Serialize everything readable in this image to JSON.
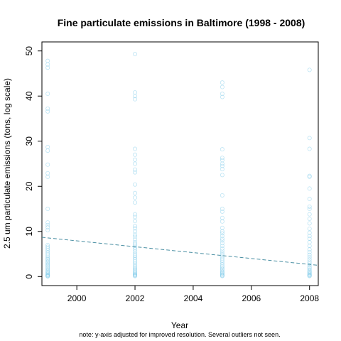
{
  "chart_data": {
    "type": "scatter",
    "title": "Fine particulate emissions in Baltimore (1998 - 2008)",
    "xlabel": "Year",
    "ylabel": "2.5 um particulate emissions (tons, log scale)",
    "note": "note: y-axis adjusted for improved resolution.  Several outliers not seen.",
    "xlim": [
      1998.8,
      2008.3
    ],
    "ylim": [
      -2,
      52
    ],
    "x_ticks": [
      2000,
      2002,
      2004,
      2006,
      2008
    ],
    "y_ticks": [
      0,
      10,
      20,
      30,
      40,
      50
    ],
    "grid": false,
    "point_color": "#87ceeb",
    "trend_color": "#4a8fa3",
    "series": [
      {
        "x": 1999,
        "values": [
          47.8,
          47.0,
          46.3,
          40.5,
          37.2,
          36.6,
          28.7,
          27.9,
          24.8,
          22.9,
          22.1,
          15.0,
          12.0,
          11.4,
          10.9,
          10.3,
          7.0,
          6.6,
          6.2,
          5.8,
          5.4,
          5.0,
          4.6,
          4.2,
          3.9,
          3.6,
          3.3,
          3.0,
          2.7,
          2.4,
          2.1,
          1.8,
          1.5,
          1.2,
          1.0,
          0.8,
          0.6,
          0.4,
          0.3,
          0.2,
          0.1,
          0.05
        ]
      },
      {
        "x": 2002,
        "values": [
          49.3,
          40.8,
          40.0,
          39.3,
          28.3,
          27.0,
          25.9,
          25.0,
          23.7,
          23.1,
          20.4,
          18.5,
          17.5,
          16.4,
          13.8,
          13.2,
          12.3,
          11.2,
          10.7,
          10.0,
          9.3,
          8.8,
          8.2,
          7.6,
          7.2,
          6.8,
          6.4,
          6.0,
          5.5,
          5.0,
          4.6,
          4.2,
          3.8,
          3.4,
          3.0,
          2.6,
          2.2,
          1.9,
          1.6,
          1.3,
          1.0,
          0.8,
          0.6,
          0.4,
          0.3,
          0.2,
          0.1
        ]
      },
      {
        "x": 2005,
        "values": [
          43.0,
          42.0,
          40.5,
          39.8,
          28.2,
          26.3,
          25.8,
          25.0,
          24.5,
          23.8,
          22.5,
          18.0,
          15.0,
          14.4,
          13.0,
          12.2,
          10.8,
          10.0,
          9.6,
          9.0,
          8.4,
          8.0,
          7.4,
          6.8,
          6.2,
          5.7,
          5.2,
          4.8,
          4.3,
          3.9,
          3.5,
          3.1,
          2.7,
          2.3,
          2.0,
          1.7,
          1.4,
          1.1,
          0.9,
          0.7,
          0.5,
          0.3,
          0.2,
          0.1
        ]
      },
      {
        "x": 2008,
        "values": [
          45.8,
          30.7,
          28.3,
          22.3,
          22.1,
          19.5,
          17.2,
          15.5,
          15.0,
          13.8,
          12.8,
          11.8,
          10.6,
          9.7,
          9.0,
          8.4,
          7.6,
          6.8,
          6.0,
          5.4,
          4.8,
          4.3,
          3.8,
          3.3,
          2.9,
          2.5,
          2.1,
          1.8,
          1.5,
          1.2,
          1.0,
          0.8,
          0.6,
          0.4,
          0.3,
          0.2,
          0.1
        ]
      }
    ],
    "trend_line": {
      "type": "linear",
      "points": [
        [
          1998.8,
          8.7
        ],
        [
          2008.3,
          2.5
        ]
      ]
    }
  }
}
